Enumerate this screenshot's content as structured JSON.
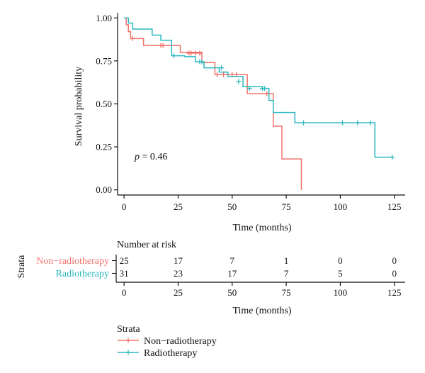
{
  "colors": {
    "non_radiotherapy": "#f0716a",
    "radiotherapy": "#2bb7be",
    "axis": "#111111"
  },
  "chart_data": [
    {
      "type": "line",
      "subtype": "kaplan-meier-step",
      "ylabel": "Survival probability",
      "xlabel": "Time (months)",
      "xlim": [
        -3,
        130
      ],
      "ylim": [
        -0.03,
        1.03
      ],
      "x_ticks": [
        0,
        25,
        50,
        75,
        100,
        125
      ],
      "y_ticks": [
        0.0,
        0.25,
        0.5,
        0.75,
        1.0
      ],
      "y_tick_labels": [
        "0.00",
        "0.25",
        "0.50",
        "0.75",
        "1.00"
      ],
      "grid": false,
      "annotation": {
        "prefix": "p",
        "text": " = 0.46",
        "at": [
          2,
          0.2
        ]
      },
      "series": [
        {
          "name": "Non−radiotherapy",
          "color": "#f0716a",
          "steps": [
            [
              0,
              1.0
            ],
            [
              1,
              0.96
            ],
            [
              2,
              0.92
            ],
            [
              3,
              0.88
            ],
            [
              9,
              0.84
            ],
            [
              26,
              0.8
            ],
            [
              36,
              0.74
            ],
            [
              42,
              0.67
            ],
            [
              57,
              0.56
            ],
            [
              67,
              0.56
            ],
            [
              69,
              0.37
            ],
            [
              73,
              0.18
            ],
            [
              82,
              0.0
            ]
          ],
          "end": 82,
          "censored": [
            [
              4,
              0.88
            ],
            [
              17,
              0.84
            ],
            [
              18,
              0.84
            ],
            [
              30,
              0.795
            ],
            [
              31,
              0.795
            ],
            [
              33,
              0.795
            ],
            [
              35,
              0.795
            ],
            [
              43,
              0.67
            ],
            [
              46,
              0.67
            ],
            [
              48,
              0.67
            ],
            [
              50,
              0.67
            ],
            [
              52,
              0.67
            ],
            [
              66,
              0.56
            ]
          ]
        },
        {
          "name": "Radiotherapy",
          "color": "#2bb7be",
          "steps": [
            [
              0,
              1.0
            ],
            [
              2,
              0.97
            ],
            [
              4,
              0.935
            ],
            [
              13,
              0.9
            ],
            [
              17,
              0.87
            ],
            [
              22,
              0.78
            ],
            [
              28,
              0.775
            ],
            [
              33,
              0.745
            ],
            [
              37,
              0.71
            ],
            [
              44,
              0.685
            ],
            [
              48,
              0.66
            ],
            [
              55,
              0.6
            ],
            [
              64,
              0.59
            ],
            [
              67,
              0.52
            ],
            [
              69,
              0.45
            ],
            [
              79,
              0.39
            ],
            [
              116,
              0.19
            ]
          ],
          "end": 124,
          "censored": [
            [
              23,
              0.78
            ],
            [
              35,
              0.745
            ],
            [
              36,
              0.745
            ],
            [
              45,
              0.71
            ],
            [
              53,
              0.63
            ],
            [
              58,
              0.59
            ],
            [
              64,
              0.59
            ],
            [
              65,
              0.59
            ],
            [
              83,
              0.39
            ],
            [
              101,
              0.39
            ],
            [
              108,
              0.39
            ],
            [
              114,
              0.39
            ],
            [
              124,
              0.19
            ]
          ]
        }
      ]
    },
    {
      "type": "table",
      "title": "Number at risk",
      "ylabel": "Strata",
      "xlabel": "Time (months)",
      "x": [
        0,
        25,
        50,
        75,
        100,
        125
      ],
      "rows": [
        {
          "name": "Non−radiotherapy",
          "color": "#f0716a",
          "values": [
            25,
            17,
            7,
            1,
            0,
            0
          ]
        },
        {
          "name": "Radiotherapy",
          "color": "#2bb7be",
          "values": [
            31,
            23,
            17,
            7,
            5,
            0
          ]
        }
      ]
    }
  ],
  "legend": {
    "title": "Strata",
    "items": [
      {
        "label": "Non−radiotherapy",
        "color": "#f0716a"
      },
      {
        "label": "Radiotherapy",
        "color": "#2bb7be"
      }
    ]
  }
}
